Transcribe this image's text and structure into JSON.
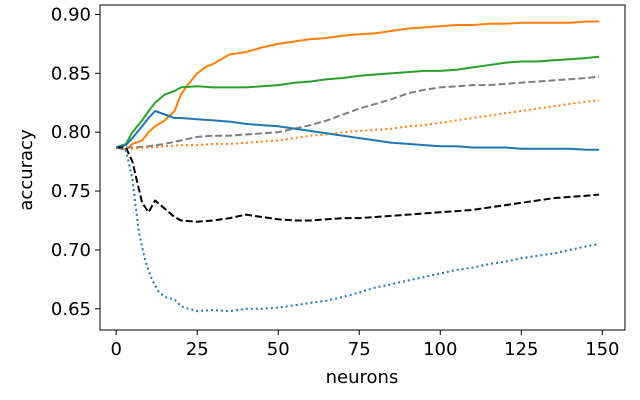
{
  "chart_data": {
    "type": "line",
    "title": "",
    "xlabel": "neurons",
    "ylabel": "accuracy",
    "xlim": [
      -5,
      157
    ],
    "ylim": [
      0.632,
      0.908
    ],
    "xticks": [
      0,
      25,
      50,
      75,
      100,
      125,
      150
    ],
    "yticks": [
      0.65,
      0.7,
      0.75,
      0.8,
      0.85,
      0.9
    ],
    "xtick_labels": [
      "0",
      "25",
      "50",
      "75",
      "100",
      "125",
      "150"
    ],
    "ytick_labels": [
      "0.65",
      "0.70",
      "0.75",
      "0.80",
      "0.85",
      "0.90"
    ],
    "grid": false,
    "legend": "none",
    "series": [
      {
        "color": "#ff7f0e",
        "dash": "solid",
        "points": [
          [
            0,
            0.787
          ],
          [
            3,
            0.785
          ],
          [
            5,
            0.79
          ],
          [
            8,
            0.793
          ],
          [
            10,
            0.8
          ],
          [
            12,
            0.805
          ],
          [
            15,
            0.81
          ],
          [
            18,
            0.818
          ],
          [
            20,
            0.832
          ],
          [
            22,
            0.84
          ],
          [
            25,
            0.85
          ],
          [
            28,
            0.856
          ],
          [
            30,
            0.858
          ],
          [
            35,
            0.866
          ],
          [
            40,
            0.868
          ],
          [
            45,
            0.872
          ],
          [
            50,
            0.875
          ],
          [
            55,
            0.877
          ],
          [
            60,
            0.879
          ],
          [
            65,
            0.88
          ],
          [
            70,
            0.882
          ],
          [
            75,
            0.883
          ],
          [
            80,
            0.884
          ],
          [
            85,
            0.886
          ],
          [
            90,
            0.888
          ],
          [
            95,
            0.889
          ],
          [
            100,
            0.89
          ],
          [
            105,
            0.891
          ],
          [
            110,
            0.891
          ],
          [
            115,
            0.892
          ],
          [
            120,
            0.892
          ],
          [
            125,
            0.893
          ],
          [
            130,
            0.893
          ],
          [
            135,
            0.893
          ],
          [
            140,
            0.893
          ],
          [
            145,
            0.894
          ],
          [
            149,
            0.894
          ]
        ]
      },
      {
        "color": "#2ca02c",
        "dash": "solid",
        "points": [
          [
            0,
            0.787
          ],
          [
            3,
            0.79
          ],
          [
            5,
            0.8
          ],
          [
            8,
            0.81
          ],
          [
            10,
            0.818
          ],
          [
            12,
            0.825
          ],
          [
            15,
            0.832
          ],
          [
            18,
            0.835
          ],
          [
            20,
            0.838
          ],
          [
            25,
            0.839
          ],
          [
            30,
            0.838
          ],
          [
            35,
            0.838
          ],
          [
            40,
            0.838
          ],
          [
            45,
            0.839
          ],
          [
            50,
            0.84
          ],
          [
            55,
            0.842
          ],
          [
            60,
            0.843
          ],
          [
            65,
            0.845
          ],
          [
            70,
            0.846
          ],
          [
            75,
            0.848
          ],
          [
            80,
            0.849
          ],
          [
            85,
            0.85
          ],
          [
            90,
            0.851
          ],
          [
            95,
            0.852
          ],
          [
            100,
            0.852
          ],
          [
            105,
            0.853
          ],
          [
            110,
            0.855
          ],
          [
            115,
            0.857
          ],
          [
            120,
            0.859
          ],
          [
            125,
            0.86
          ],
          [
            130,
            0.86
          ],
          [
            135,
            0.861
          ],
          [
            140,
            0.862
          ],
          [
            145,
            0.863
          ],
          [
            149,
            0.864
          ]
        ]
      },
      {
        "color": "#7f7f7f",
        "dash": "dashed",
        "points": [
          [
            0,
            0.787
          ],
          [
            5,
            0.787
          ],
          [
            10,
            0.788
          ],
          [
            15,
            0.79
          ],
          [
            20,
            0.793
          ],
          [
            25,
            0.796
          ],
          [
            30,
            0.797
          ],
          [
            35,
            0.797
          ],
          [
            40,
            0.798
          ],
          [
            45,
            0.799
          ],
          [
            50,
            0.8
          ],
          [
            55,
            0.803
          ],
          [
            60,
            0.806
          ],
          [
            65,
            0.81
          ],
          [
            70,
            0.815
          ],
          [
            75,
            0.82
          ],
          [
            80,
            0.824
          ],
          [
            85,
            0.828
          ],
          [
            90,
            0.833
          ],
          [
            95,
            0.836
          ],
          [
            100,
            0.838
          ],
          [
            105,
            0.839
          ],
          [
            110,
            0.84
          ],
          [
            115,
            0.84
          ],
          [
            120,
            0.841
          ],
          [
            125,
            0.842
          ],
          [
            130,
            0.843
          ],
          [
            135,
            0.844
          ],
          [
            140,
            0.845
          ],
          [
            145,
            0.846
          ],
          [
            149,
            0.847
          ]
        ]
      },
      {
        "color": "#ff7f0e",
        "dash": "dotted",
        "points": [
          [
            0,
            0.787
          ],
          [
            5,
            0.786
          ],
          [
            10,
            0.787
          ],
          [
            15,
            0.788
          ],
          [
            20,
            0.789
          ],
          [
            25,
            0.789
          ],
          [
            30,
            0.79
          ],
          [
            35,
            0.79
          ],
          [
            40,
            0.791
          ],
          [
            45,
            0.792
          ],
          [
            50,
            0.793
          ],
          [
            55,
            0.795
          ],
          [
            60,
            0.797
          ],
          [
            65,
            0.798
          ],
          [
            70,
            0.8
          ],
          [
            75,
            0.801
          ],
          [
            80,
            0.802
          ],
          [
            85,
            0.803
          ],
          [
            90,
            0.805
          ],
          [
            95,
            0.806
          ],
          [
            100,
            0.808
          ],
          [
            105,
            0.81
          ],
          [
            110,
            0.812
          ],
          [
            115,
            0.814
          ],
          [
            120,
            0.816
          ],
          [
            125,
            0.818
          ],
          [
            130,
            0.82
          ],
          [
            135,
            0.822
          ],
          [
            140,
            0.824
          ],
          [
            145,
            0.826
          ],
          [
            149,
            0.827
          ]
        ]
      },
      {
        "color": "#1f77b4",
        "dash": "solid",
        "points": [
          [
            0,
            0.787
          ],
          [
            3,
            0.789
          ],
          [
            5,
            0.795
          ],
          [
            8,
            0.805
          ],
          [
            10,
            0.812
          ],
          [
            12,
            0.818
          ],
          [
            15,
            0.815
          ],
          [
            18,
            0.812
          ],
          [
            20,
            0.812
          ],
          [
            25,
            0.811
          ],
          [
            30,
            0.81
          ],
          [
            35,
            0.809
          ],
          [
            40,
            0.807
          ],
          [
            45,
            0.806
          ],
          [
            50,
            0.805
          ],
          [
            55,
            0.803
          ],
          [
            60,
            0.801
          ],
          [
            65,
            0.799
          ],
          [
            70,
            0.797
          ],
          [
            75,
            0.795
          ],
          [
            80,
            0.793
          ],
          [
            85,
            0.791
          ],
          [
            90,
            0.79
          ],
          [
            95,
            0.789
          ],
          [
            100,
            0.788
          ],
          [
            105,
            0.788
          ],
          [
            110,
            0.787
          ],
          [
            115,
            0.787
          ],
          [
            120,
            0.787
          ],
          [
            125,
            0.786
          ],
          [
            130,
            0.786
          ],
          [
            135,
            0.786
          ],
          [
            140,
            0.786
          ],
          [
            145,
            0.785
          ],
          [
            149,
            0.785
          ]
        ]
      },
      {
        "color": "#000000",
        "dash": "dashed",
        "points": [
          [
            0,
            0.787
          ],
          [
            3,
            0.787
          ],
          [
            5,
            0.775
          ],
          [
            8,
            0.74
          ],
          [
            10,
            0.732
          ],
          [
            12,
            0.742
          ],
          [
            15,
            0.735
          ],
          [
            18,
            0.728
          ],
          [
            20,
            0.725
          ],
          [
            25,
            0.724
          ],
          [
            30,
            0.725
          ],
          [
            35,
            0.727
          ],
          [
            40,
            0.73
          ],
          [
            45,
            0.728
          ],
          [
            50,
            0.726
          ],
          [
            55,
            0.725
          ],
          [
            60,
            0.725
          ],
          [
            65,
            0.726
          ],
          [
            70,
            0.727
          ],
          [
            75,
            0.727
          ],
          [
            80,
            0.728
          ],
          [
            85,
            0.729
          ],
          [
            90,
            0.73
          ],
          [
            95,
            0.731
          ],
          [
            100,
            0.732
          ],
          [
            105,
            0.733
          ],
          [
            110,
            0.734
          ],
          [
            115,
            0.736
          ],
          [
            120,
            0.738
          ],
          [
            125,
            0.74
          ],
          [
            130,
            0.742
          ],
          [
            135,
            0.744
          ],
          [
            140,
            0.745
          ],
          [
            145,
            0.746
          ],
          [
            149,
            0.747
          ]
        ]
      },
      {
        "color": "#1f77b4",
        "dash": "dotted",
        "points": [
          [
            0,
            0.787
          ],
          [
            3,
            0.785
          ],
          [
            5,
            0.76
          ],
          [
            7,
            0.715
          ],
          [
            9,
            0.69
          ],
          [
            11,
            0.675
          ],
          [
            13,
            0.665
          ],
          [
            15,
            0.66
          ],
          [
            18,
            0.658
          ],
          [
            20,
            0.652
          ],
          [
            25,
            0.648
          ],
          [
            30,
            0.649
          ],
          [
            35,
            0.648
          ],
          [
            40,
            0.65
          ],
          [
            45,
            0.65
          ],
          [
            50,
            0.651
          ],
          [
            55,
            0.653
          ],
          [
            60,
            0.655
          ],
          [
            65,
            0.657
          ],
          [
            70,
            0.66
          ],
          [
            75,
            0.664
          ],
          [
            80,
            0.668
          ],
          [
            85,
            0.671
          ],
          [
            90,
            0.674
          ],
          [
            95,
            0.677
          ],
          [
            100,
            0.68
          ],
          [
            105,
            0.683
          ],
          [
            110,
            0.685
          ],
          [
            115,
            0.688
          ],
          [
            120,
            0.69
          ],
          [
            125,
            0.693
          ],
          [
            130,
            0.695
          ],
          [
            135,
            0.697
          ],
          [
            140,
            0.7
          ],
          [
            145,
            0.703
          ],
          [
            149,
            0.705
          ]
        ]
      }
    ]
  }
}
